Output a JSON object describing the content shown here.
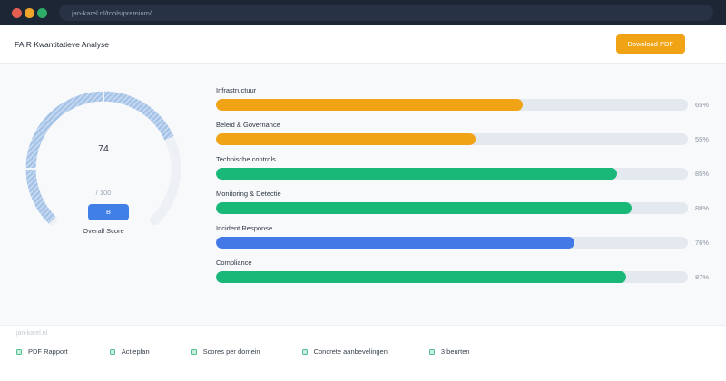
{
  "browser": {
    "url": "jan-karel.nl/tools/premium/..."
  },
  "header": {
    "title": "FAIR Kwantitatieve Analyse",
    "download_label": "Download PDF"
  },
  "gauge": {
    "score": "74",
    "value": 74,
    "max_label": "/ 100",
    "grade": "B",
    "label": "Overall Score",
    "fill_color": "#a4c3e7",
    "track_color": "#edf1f6",
    "badge_color": "#4080e6"
  },
  "domains": [
    {
      "label": "Infrastructuur",
      "value": 65,
      "pct": "65%",
      "color": "#f0a314"
    },
    {
      "label": "Beleid & Governance",
      "value": 55,
      "pct": "55%",
      "color": "#f0a314"
    },
    {
      "label": "Technische controls",
      "value": 85,
      "pct": "85%",
      "color": "#19b878"
    },
    {
      "label": "Monitoring & Detectie",
      "value": 88,
      "pct": "88%",
      "color": "#19b878"
    },
    {
      "label": "Incident Response",
      "value": 76,
      "pct": "76%",
      "color": "#4379e6"
    },
    {
      "label": "Compliance",
      "value": 87,
      "pct": "87%",
      "color": "#19b878"
    }
  ],
  "footer": {
    "brand": "jan-karel.nl",
    "items": [
      {
        "label": "PDF Rapport"
      },
      {
        "label": "Actieplan"
      },
      {
        "label": "Scores per domein"
      },
      {
        "label": "Concrete aanbevelingen"
      },
      {
        "label": "3 beurten"
      }
    ]
  },
  "colors": {
    "chrome_bar": "#1c2634",
    "accent_orange": "#f0a314",
    "accent_green": "#19b878",
    "accent_blue": "#4379e6"
  }
}
